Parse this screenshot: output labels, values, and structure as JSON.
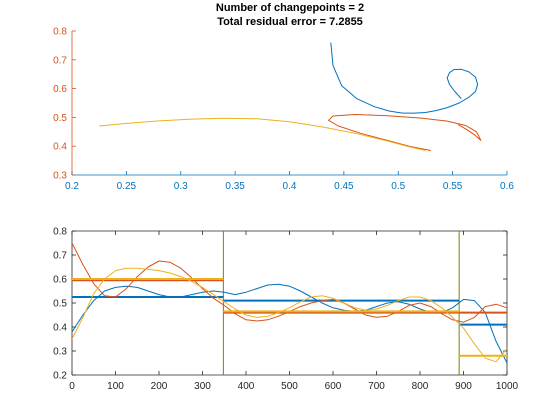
{
  "title_line1": "Number of changepoints = 2",
  "title_line2": "Total residual error = 7.2855",
  "colors": {
    "blue": "#0072BD",
    "orange": "#D95319",
    "yellow": "#EDB120",
    "olive": "#808000",
    "top_xaxis": "#0072BD",
    "top_yaxis": "#D95319",
    "bottom_axis": "#262626"
  },
  "chart_data": [
    {
      "type": "line",
      "xlim": [
        0.2,
        0.6
      ],
      "ylim": [
        0.3,
        0.8
      ],
      "xticks": [
        0.2,
        0.25,
        0.3,
        0.35,
        0.4,
        0.45,
        0.5,
        0.55,
        0.6
      ],
      "xtick_labels": [
        "0.2",
        "0.25",
        "0.3",
        "0.35",
        "0.4",
        "0.45",
        "0.5",
        "0.55",
        "0.6"
      ],
      "yticks": [
        0.3,
        0.4,
        0.5,
        0.6,
        0.7,
        0.8
      ],
      "ytick_labels": [
        "0.3",
        "0.4",
        "0.5",
        "0.6",
        "0.7",
        "0.8"
      ],
      "series": [
        {
          "color": "blue",
          "x": [
            0.438,
            0.44,
            0.448,
            0.462,
            0.478,
            0.492,
            0.504,
            0.515,
            0.525,
            0.535,
            0.545,
            0.556,
            0.565,
            0.571,
            0.573,
            0.571,
            0.565,
            0.558,
            0.551,
            0.547,
            0.545,
            0.547,
            0.552,
            0.558
          ],
          "y": [
            0.76,
            0.68,
            0.61,
            0.565,
            0.537,
            0.522,
            0.515,
            0.515,
            0.517,
            0.524,
            0.534,
            0.55,
            0.57,
            0.59,
            0.615,
            0.64,
            0.658,
            0.667,
            0.666,
            0.655,
            0.637,
            0.615,
            0.59,
            0.565
          ]
        },
        {
          "color": "orange",
          "x": [
            0.53,
            0.51,
            0.49,
            0.465,
            0.445,
            0.436,
            0.44,
            0.46,
            0.49,
            0.52,
            0.545,
            0.562,
            0.572,
            0.576,
            0.57,
            0.562,
            0.555
          ],
          "y": [
            0.385,
            0.4,
            0.42,
            0.445,
            0.47,
            0.49,
            0.505,
            0.51,
            0.506,
            0.498,
            0.487,
            0.472,
            0.45,
            0.42,
            0.44,
            0.46,
            0.475
          ]
        },
        {
          "color": "yellow",
          "x": [
            0.225,
            0.25,
            0.28,
            0.31,
            0.34,
            0.37,
            0.4,
            0.43,
            0.46,
            0.49,
            0.51,
            0.525
          ],
          "y": [
            0.47,
            0.479,
            0.488,
            0.494,
            0.497,
            0.495,
            0.485,
            0.467,
            0.445,
            0.418,
            0.398,
            0.385
          ]
        }
      ]
    },
    {
      "type": "line",
      "xlim": [
        0,
        1000
      ],
      "ylim": [
        0.2,
        0.8
      ],
      "xticks": [
        0,
        100,
        200,
        300,
        400,
        500,
        600,
        700,
        800,
        900,
        1000
      ],
      "xtick_labels": [
        "0",
        "100",
        "200",
        "300",
        "400",
        "500",
        "600",
        "700",
        "800",
        "900",
        "1000"
      ],
      "yticks": [
        0.2,
        0.3,
        0.4,
        0.5,
        0.6,
        0.7,
        0.8
      ],
      "ytick_labels": [
        "0.2",
        "0.3",
        "0.4",
        "0.5",
        "0.6",
        "0.7",
        "0.8"
      ],
      "changepoints": [
        348,
        890
      ],
      "changepoint_color": "olive",
      "series": [
        {
          "color": "blue",
          "x": [
            0,
            25,
            50,
            75,
            100,
            125,
            150,
            175,
            200,
            225,
            250,
            275,
            300,
            325,
            350,
            375,
            400,
            425,
            450,
            475,
            500,
            525,
            550,
            575,
            600,
            625,
            650,
            675,
            700,
            725,
            750,
            775,
            800,
            825,
            850,
            875,
            900,
            925,
            950,
            975,
            1000
          ],
          "y": [
            0.38,
            0.45,
            0.51,
            0.55,
            0.565,
            0.57,
            0.565,
            0.55,
            0.535,
            0.525,
            0.525,
            0.535,
            0.545,
            0.55,
            0.545,
            0.535,
            0.545,
            0.56,
            0.575,
            0.578,
            0.57,
            0.55,
            0.525,
            0.5,
            0.48,
            0.47,
            0.465,
            0.47,
            0.485,
            0.5,
            0.505,
            0.495,
            0.475,
            0.46,
            0.46,
            0.48,
            0.515,
            0.51,
            0.46,
            0.34,
            0.25
          ],
          "segments": [
            {
              "x0": 0,
              "x1": 348,
              "y": 0.525
            },
            {
              "x0": 348,
              "x1": 890,
              "y": 0.51
            },
            {
              "x0": 890,
              "x1": 1000,
              "y": 0.41
            }
          ]
        },
        {
          "color": "orange",
          "x": [
            0,
            25,
            50,
            75,
            100,
            125,
            150,
            175,
            200,
            225,
            250,
            275,
            300,
            325,
            350,
            375,
            400,
            425,
            450,
            475,
            500,
            525,
            550,
            575,
            600,
            625,
            650,
            675,
            700,
            725,
            750,
            775,
            800,
            825,
            850,
            875,
            900,
            925,
            950,
            975,
            1000
          ],
          "y": [
            0.75,
            0.66,
            0.58,
            0.53,
            0.525,
            0.56,
            0.61,
            0.65,
            0.675,
            0.67,
            0.645,
            0.605,
            0.56,
            0.52,
            0.49,
            0.455,
            0.43,
            0.425,
            0.43,
            0.445,
            0.465,
            0.485,
            0.5,
            0.51,
            0.515,
            0.5,
            0.475,
            0.45,
            0.44,
            0.445,
            0.465,
            0.49,
            0.5,
            0.485,
            0.455,
            0.43,
            0.42,
            0.44,
            0.485,
            0.495,
            0.48
          ],
          "segments": [
            {
              "x0": 0,
              "x1": 348,
              "y": 0.595
            },
            {
              "x0": 348,
              "x1": 890,
              "y": 0.46
            },
            {
              "x0": 890,
              "x1": 1000,
              "y": 0.46
            }
          ]
        },
        {
          "color": "yellow",
          "x": [
            0,
            25,
            50,
            75,
            100,
            125,
            150,
            175,
            200,
            225,
            250,
            275,
            300,
            325,
            350,
            375,
            400,
            425,
            450,
            475,
            500,
            525,
            550,
            575,
            600,
            625,
            650,
            675,
            700,
            725,
            750,
            775,
            800,
            825,
            850,
            875,
            900,
            925,
            950,
            975,
            1000
          ],
          "y": [
            0.35,
            0.44,
            0.54,
            0.6,
            0.635,
            0.645,
            0.645,
            0.64,
            0.635,
            0.625,
            0.61,
            0.59,
            0.565,
            0.535,
            0.505,
            0.475,
            0.45,
            0.44,
            0.445,
            0.46,
            0.48,
            0.505,
            0.525,
            0.53,
            0.52,
            0.5,
            0.48,
            0.47,
            0.475,
            0.49,
            0.51,
            0.525,
            0.525,
            0.51,
            0.48,
            0.44,
            0.395,
            0.33,
            0.27,
            0.255,
            0.31
          ],
          "segments": [
            {
              "x0": 0,
              "x1": 348,
              "y": 0.6
            },
            {
              "x0": 348,
              "x1": 890,
              "y": 0.465
            },
            {
              "x0": 890,
              "x1": 1000,
              "y": 0.28
            }
          ]
        }
      ]
    }
  ]
}
